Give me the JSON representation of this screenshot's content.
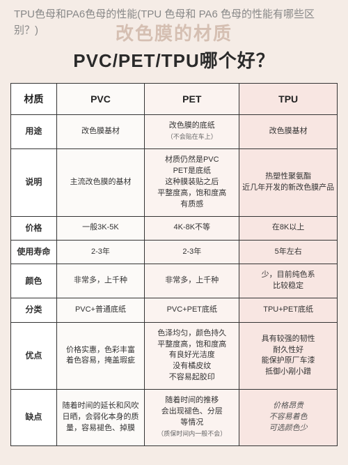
{
  "watermark": "TPU色母和PA6色母的性能(TPU 色母和 PA6 色母的性能有哪些区别？)",
  "title": {
    "line1": "改色膜的材质",
    "line2": "PVC/PET/TPU哪个好？"
  },
  "headers": {
    "h0": "材质",
    "h1": "PVC",
    "h2": "PET",
    "h3": "TPU"
  },
  "rows": {
    "use": {
      "label": "用途",
      "c1": "改色膜基材",
      "c2": "改色膜的底纸",
      "c2note": "（不会贴在车上）",
      "c3": "改色膜基材"
    },
    "desc": {
      "label": "说明",
      "c1": "主流改色膜的基材",
      "c2": "材质仍然是PVC\nPET是底纸\n这种膜装贴之后\n平整度高，饱和度高\n有质感",
      "c3": "热塑性聚氨酯\n近几年开发的新改色膜产品"
    },
    "price": {
      "label": "价格",
      "c1": "一般3K-5K",
      "c2": "4K-8K不等",
      "c3": "在8K以上"
    },
    "life": {
      "label": "使用寿命",
      "c1": "2-3年",
      "c2": "2-3年",
      "c3": "5年左右"
    },
    "color": {
      "label": "颜色",
      "c1": "非常多，上千种",
      "c2": "非常多，上千种",
      "c3": "少，目前纯色系\n比较稳定"
    },
    "cat": {
      "label": "分类",
      "c1": "PVC+普通底纸",
      "c2": "PVC+PET底纸",
      "c3": "TPU+PET底纸"
    },
    "pros": {
      "label": "优点",
      "c1": "价格实惠，色彩丰富\n着色容易，掩盖瑕疵",
      "c2": "色泽均匀，颜色持久\n平整度高，饱和度高\n有良好光洁度\n没有橘皮纹\n不容易起胶印",
      "c3": "具有较强的韧性\n耐久性好\n能保护原厂车漆\n抵御小剐小蹭"
    },
    "cons": {
      "label": "缺点",
      "c1": "随着时间的延长和风吹日晒，会弱化本身的质量，容易褪色、掉膜",
      "c2": "随着时间的推移\n会出现褪色、分层\n等情况",
      "c2note": "（质保时间内一般不会）",
      "c3": "价格昂贵\n不容易着色\n可选颜色少"
    }
  }
}
